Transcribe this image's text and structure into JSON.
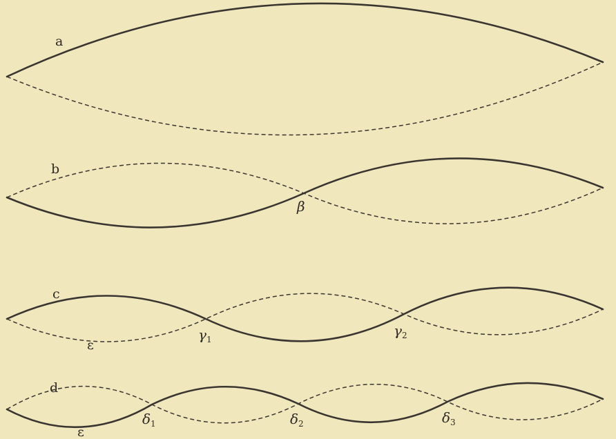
{
  "diagram": {
    "description_labels": {
      "a": "a",
      "b": "b",
      "c": "c",
      "d": "d",
      "eps_c": "ε",
      "eps_d": "ε",
      "beta": "β",
      "gamma": "γ",
      "delta": "δ",
      "sub_1": "1",
      "sub_2": "2",
      "sub_3": "3"
    },
    "colors": {
      "background": "#f1e7bd",
      "ink": "#3a3530"
    }
  }
}
